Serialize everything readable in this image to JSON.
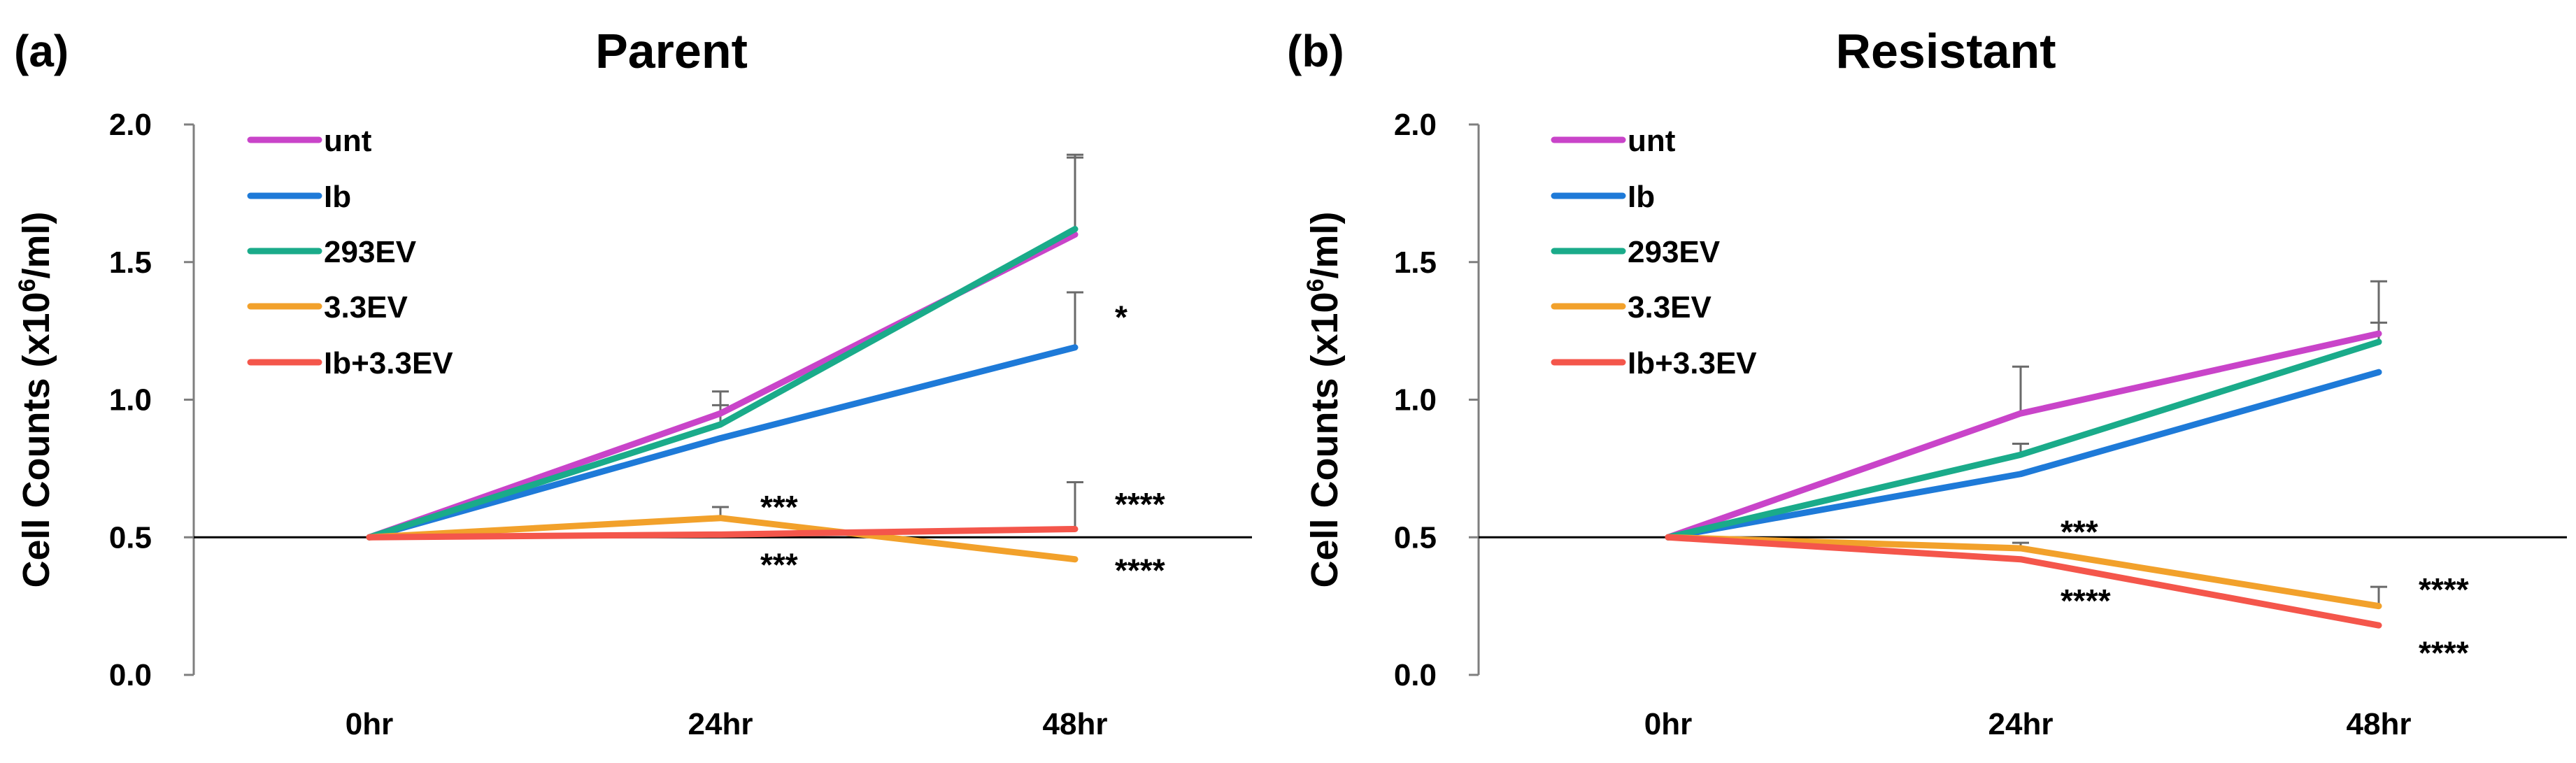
{
  "chart_data": [
    {
      "panel": "(a)",
      "type": "line",
      "title": "Parent",
      "ylabel": "Cell Counts (x10",
      "ylabel_sup": "6",
      "ylabel_tail": "/ml)",
      "xlabel": "",
      "categories": [
        "0hr",
        "24hr",
        "48hr"
      ],
      "ylim": [
        0.0,
        2.0
      ],
      "yticks": [
        "0.0",
        "0.5",
        "1.0",
        "1.5",
        "2.0"
      ],
      "ytick_values": [
        0.0,
        0.5,
        1.0,
        1.5,
        2.0
      ],
      "reference_line": 0.5,
      "legend": "top-left",
      "series": [
        {
          "name": "unt",
          "color": "#c944c9",
          "values": [
            0.5,
            0.95,
            1.6
          ],
          "errors": [
            0,
            0.08,
            0.28
          ]
        },
        {
          "name": "Ib",
          "color": "#1e7ad8",
          "values": [
            0.5,
            0.86,
            1.19
          ],
          "errors": [
            0,
            0.0,
            0.2
          ]
        },
        {
          "name": "293EV",
          "color": "#1aab8a",
          "values": [
            0.5,
            0.91,
            1.62
          ],
          "errors": [
            0,
            0.07,
            0.27
          ]
        },
        {
          "name": "3.3EV",
          "color": "#f2a12b",
          "values": [
            0.5,
            0.57,
            0.42
          ],
          "errors": [
            0,
            0.04,
            0.0
          ]
        },
        {
          "name": "Ib+3.3EV",
          "color": "#f4564b",
          "values": [
            0.5,
            0.51,
            0.53
          ],
          "errors": [
            0,
            0.0,
            0.17
          ]
        }
      ],
      "annotations": [
        {
          "text": "*",
          "x": "48hr",
          "y": 1.3
        },
        {
          "text": "***",
          "x": "24hr",
          "y": 0.61
        },
        {
          "text": "***",
          "x": "24hr",
          "y": 0.4
        },
        {
          "text": "****",
          "x": "48hr",
          "y": 0.62
        },
        {
          "text": "****",
          "x": "48hr",
          "y": 0.38
        }
      ]
    },
    {
      "panel": "(b)",
      "type": "line",
      "title": "Resistant",
      "ylabel": "Cell Counts (x10",
      "ylabel_sup": "6",
      "ylabel_tail": "/ml)",
      "xlabel": "",
      "categories": [
        "0hr",
        "24hr",
        "48hr"
      ],
      "ylim": [
        0.0,
        2.0
      ],
      "yticks": [
        "0.0",
        "0.5",
        "1.0",
        "1.5",
        "2.0"
      ],
      "ytick_values": [
        0.0,
        0.5,
        1.0,
        1.5,
        2.0
      ],
      "reference_line": 0.5,
      "legend": "top-left",
      "series": [
        {
          "name": "unt",
          "color": "#c944c9",
          "values": [
            0.5,
            0.95,
            1.24
          ],
          "errors": [
            0,
            0.17,
            0.19
          ]
        },
        {
          "name": "Ib",
          "color": "#1e7ad8",
          "values": [
            0.5,
            0.73,
            1.1
          ],
          "errors": [
            0,
            0.0,
            0.0
          ]
        },
        {
          "name": "293EV",
          "color": "#1aab8a",
          "values": [
            0.5,
            0.8,
            1.21
          ],
          "errors": [
            0,
            0.04,
            0.07
          ]
        },
        {
          "name": "3.3EV",
          "color": "#f2a12b",
          "values": [
            0.5,
            0.46,
            0.25
          ],
          "errors": [
            0,
            0.02,
            0.07
          ]
        },
        {
          "name": "Ib+3.3EV",
          "color": "#f4564b",
          "values": [
            0.5,
            0.42,
            0.18
          ],
          "errors": [
            0,
            0.0,
            0.0
          ]
        }
      ],
      "annotations": [
        {
          "text": "***",
          "x": "24hr",
          "y": 0.52
        },
        {
          "text": "****",
          "x": "24hr",
          "y": 0.27
        },
        {
          "text": "****",
          "x": "48hr",
          "y": 0.31
        },
        {
          "text": "****",
          "x": "48hr",
          "y": 0.08
        }
      ]
    }
  ]
}
